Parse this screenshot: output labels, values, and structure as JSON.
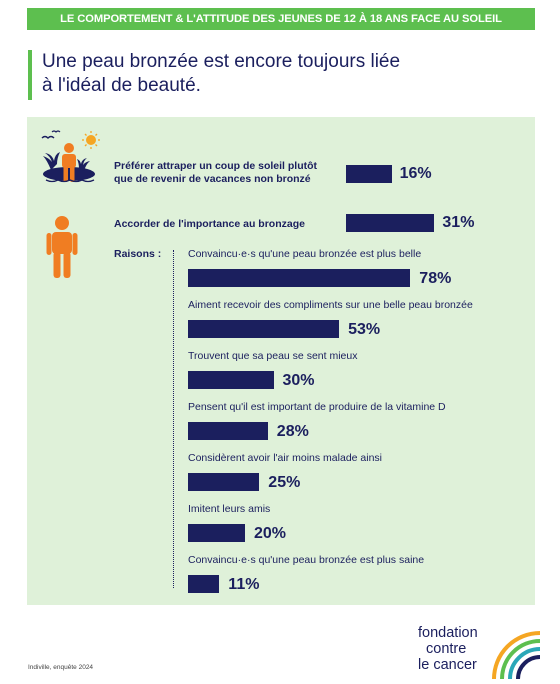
{
  "banner": "LE COMPORTEMENT & L'ATTITUDE DES JEUNES DE 12 À 18 ANS FACE AU SOLEIL",
  "headline": [
    "Une peau bronzée est encore toujours liée",
    "à l'idéal de beauté."
  ],
  "raisons_label": "Raisons :",
  "source": "Indiville, enquête 2024",
  "logo": {
    "line1": "fondation",
    "line2": "contre",
    "line3": "le cancer"
  },
  "colors": {
    "green": "#5dbf4f",
    "navy": "#1b1f5e",
    "panel": "#dff1d9",
    "orange": "#f07d22",
    "sun": "#f5a623"
  },
  "icons": [
    "island-sun-icon",
    "person-icon"
  ],
  "chart_data": {
    "type": "bar",
    "title": "Une peau bronzée est encore toujours liée à l'idéal de beauté.",
    "main_items": [
      {
        "label": [
          "Préférer attraper un coup de soleil plutôt",
          "que de revenir de vacances non bronzé"
        ],
        "value": 16,
        "display": "16%"
      },
      {
        "label": [
          "Accorder de l'importance au bronzage"
        ],
        "value": 31,
        "display": "31%"
      }
    ],
    "reasons": [
      {
        "label": "Convaincu·e·s qu'une peau bronzée est plus belle",
        "value": 78,
        "display": "78%"
      },
      {
        "label": "Aiment recevoir des compliments sur une belle peau bronzée",
        "value": 53,
        "display": "53%"
      },
      {
        "label": "Trouvent que sa peau se sent mieux",
        "value": 30,
        "display": "30%"
      },
      {
        "label": "Pensent qu'il est important de produire de la vitamine D",
        "value": 28,
        "display": "28%"
      },
      {
        "label": "Considèrent avoir l'air moins malade ainsi",
        "value": 25,
        "display": "25%"
      },
      {
        "label": "Imitent leurs amis",
        "value": 20,
        "display": "20%"
      },
      {
        "label": "Convaincu·e·s qu'une peau bronzée est plus saine",
        "value": 11,
        "display": "11%"
      }
    ]
  }
}
